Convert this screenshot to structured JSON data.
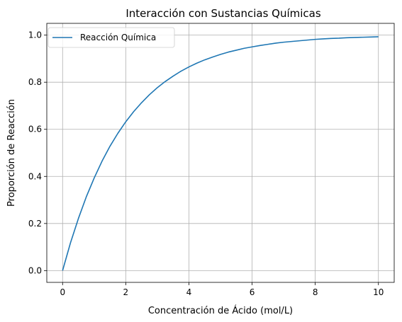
{
  "chart_data": {
    "type": "line",
    "title": "Interacción con Sustancias Químicas",
    "xlabel": "Concentración de Ácido (mol/L)",
    "ylabel": "Proporción de Reacción",
    "xlim": [
      -0.5,
      10.5
    ],
    "ylim": [
      -0.05,
      1.05
    ],
    "xticks": [
      0,
      2,
      4,
      6,
      8,
      10
    ],
    "yticks": [
      0.0,
      0.2,
      0.4,
      0.6,
      0.8,
      1.0
    ],
    "xtick_labels": [
      "0",
      "2",
      "4",
      "6",
      "8",
      "10"
    ],
    "ytick_labels": [
      "0.0",
      "0.2",
      "0.4",
      "0.6",
      "0.8",
      "1.0"
    ],
    "grid": true,
    "legend_position": "top-left",
    "series": [
      {
        "name": "Reacción Química",
        "color": "#1f77b4",
        "x": [
          0,
          0.25,
          0.5,
          0.75,
          1,
          1.25,
          1.5,
          1.75,
          2,
          2.25,
          2.5,
          2.75,
          3,
          3.25,
          3.5,
          3.75,
          4,
          4.25,
          4.5,
          4.75,
          5,
          5.25,
          5.5,
          5.75,
          6,
          6.25,
          6.5,
          6.75,
          7,
          7.25,
          7.5,
          7.75,
          8,
          8.25,
          8.5,
          8.75,
          9,
          9.25,
          9.5,
          9.75,
          10
        ],
        "y": [
          0.0,
          0.118,
          0.221,
          0.313,
          0.393,
          0.465,
          0.528,
          0.583,
          0.632,
          0.675,
          0.713,
          0.747,
          0.777,
          0.803,
          0.826,
          0.847,
          0.865,
          0.881,
          0.895,
          0.907,
          0.918,
          0.928,
          0.936,
          0.944,
          0.95,
          0.956,
          0.961,
          0.966,
          0.97,
          0.973,
          0.976,
          0.979,
          0.982,
          0.984,
          0.986,
          0.987,
          0.989,
          0.99,
          0.991,
          0.992,
          0.993
        ]
      }
    ]
  }
}
